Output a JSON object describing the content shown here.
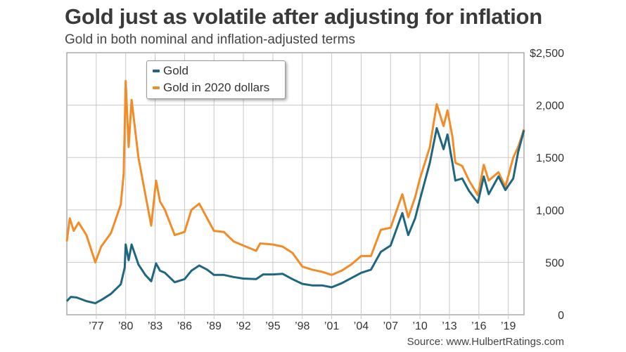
{
  "chart_data": {
    "type": "line",
    "title": "Gold just as volatile after adjusting for inflation",
    "subtitle": "Gold in both nominal and inflation-adjusted terms",
    "source": "Source: www.HulbertRatings.com",
    "xlabel": "",
    "ylabel": "",
    "xlim": [
      1974,
      2020.6
    ],
    "ylim": [
      0,
      2500
    ],
    "grid": true,
    "legend_position": "top-left",
    "x_ticks": [
      {
        "value": 1977,
        "label": "’77"
      },
      {
        "value": 1980,
        "label": "’80"
      },
      {
        "value": 1983,
        "label": "’83"
      },
      {
        "value": 1986,
        "label": "’86"
      },
      {
        "value": 1989,
        "label": "’89"
      },
      {
        "value": 1992,
        "label": "’92"
      },
      {
        "value": 1995,
        "label": "’95"
      },
      {
        "value": 1998,
        "label": "’98"
      },
      {
        "value": 2001,
        "label": "’01"
      },
      {
        "value": 2004,
        "label": "’04"
      },
      {
        "value": 2007,
        "label": "’07"
      },
      {
        "value": 2010,
        "label": "’10"
      },
      {
        "value": 2013,
        "label": "’13"
      },
      {
        "value": 2016,
        "label": "’16"
      },
      {
        "value": 2019,
        "label": "’19"
      }
    ],
    "y_ticks": [
      {
        "value": 0,
        "label": "0"
      },
      {
        "value": 500,
        "label": "500"
      },
      {
        "value": 1000,
        "label": "1,000"
      },
      {
        "value": 1500,
        "label": "1,500"
      },
      {
        "value": 2000,
        "label": "2,000"
      },
      {
        "value": 2500,
        "label": "$2,500"
      }
    ],
    "series": [
      {
        "name": "Gold",
        "color": "#1f6680",
        "points": [
          [
            1974,
            130
          ],
          [
            1974.4,
            170
          ],
          [
            1975,
            165
          ],
          [
            1976,
            130
          ],
          [
            1976.9,
            110
          ],
          [
            1977.5,
            140
          ],
          [
            1978.5,
            200
          ],
          [
            1979.5,
            290
          ],
          [
            1979.9,
            450
          ],
          [
            1980.0,
            670
          ],
          [
            1980.3,
            520
          ],
          [
            1980.6,
            670
          ],
          [
            1981.3,
            480
          ],
          [
            1982,
            380
          ],
          [
            1982.6,
            320
          ],
          [
            1983.1,
            490
          ],
          [
            1983.5,
            420
          ],
          [
            1984,
            400
          ],
          [
            1985,
            310
          ],
          [
            1986,
            340
          ],
          [
            1986.7,
            420
          ],
          [
            1987.5,
            470
          ],
          [
            1988.3,
            430
          ],
          [
            1989,
            380
          ],
          [
            1990,
            380
          ],
          [
            1991,
            360
          ],
          [
            1992,
            345
          ],
          [
            1993.3,
            340
          ],
          [
            1994,
            385
          ],
          [
            1995,
            385
          ],
          [
            1996,
            390
          ],
          [
            1997,
            340
          ],
          [
            1998,
            295
          ],
          [
            1999,
            280
          ],
          [
            2000,
            280
          ],
          [
            2001,
            262
          ],
          [
            2002,
            300
          ],
          [
            2003,
            350
          ],
          [
            2004,
            400
          ],
          [
            2005,
            430
          ],
          [
            2006,
            600
          ],
          [
            2007,
            660
          ],
          [
            2008.2,
            970
          ],
          [
            2008.8,
            760
          ],
          [
            2009.5,
            920
          ],
          [
            2010,
            1100
          ],
          [
            2011,
            1450
          ],
          [
            2011.7,
            1780
          ],
          [
            2012.4,
            1580
          ],
          [
            2012.8,
            1720
          ],
          [
            2013.3,
            1450
          ],
          [
            2013.6,
            1280
          ],
          [
            2014.3,
            1300
          ],
          [
            2015,
            1180
          ],
          [
            2015.9,
            1070
          ],
          [
            2016.5,
            1320
          ],
          [
            2017,
            1150
          ],
          [
            2018,
            1320
          ],
          [
            2018.7,
            1190
          ],
          [
            2019.5,
            1300
          ],
          [
            2020,
            1550
          ],
          [
            2020.6,
            1760
          ]
        ]
      },
      {
        "name": "Gold in 2020 dollars",
        "color": "#f28c28",
        "points": [
          [
            1974,
            700
          ],
          [
            1974.3,
            920
          ],
          [
            1974.7,
            800
          ],
          [
            1975.2,
            880
          ],
          [
            1976,
            760
          ],
          [
            1976.9,
            500
          ],
          [
            1977.5,
            650
          ],
          [
            1978.5,
            780
          ],
          [
            1979.5,
            1050
          ],
          [
            1979.8,
            1350
          ],
          [
            1980.0,
            2230
          ],
          [
            1980.3,
            1600
          ],
          [
            1980.6,
            2050
          ],
          [
            1981.3,
            1500
          ],
          [
            1982,
            1150
          ],
          [
            1982.6,
            850
          ],
          [
            1983.1,
            1280
          ],
          [
            1983.5,
            1080
          ],
          [
            1984,
            1000
          ],
          [
            1985,
            760
          ],
          [
            1986,
            790
          ],
          [
            1986.7,
            1000
          ],
          [
            1987.5,
            1060
          ],
          [
            1988.3,
            920
          ],
          [
            1989,
            800
          ],
          [
            1990,
            790
          ],
          [
            1991,
            700
          ],
          [
            1992,
            660
          ],
          [
            1993.3,
            610
          ],
          [
            1993.7,
            680
          ],
          [
            1995,
            670
          ],
          [
            1996,
            650
          ],
          [
            1997,
            590
          ],
          [
            1998,
            460
          ],
          [
            1999,
            430
          ],
          [
            2000,
            410
          ],
          [
            2001,
            380
          ],
          [
            2002,
            420
          ],
          [
            2003,
            480
          ],
          [
            2004,
            560
          ],
          [
            2005,
            560
          ],
          [
            2006,
            810
          ],
          [
            2007,
            830
          ],
          [
            2008.2,
            1150
          ],
          [
            2008.8,
            930
          ],
          [
            2009.5,
            1120
          ],
          [
            2010,
            1300
          ],
          [
            2011,
            1600
          ],
          [
            2011.7,
            2010
          ],
          [
            2012.4,
            1800
          ],
          [
            2012.8,
            1950
          ],
          [
            2013.3,
            1700
          ],
          [
            2013.6,
            1450
          ],
          [
            2014.3,
            1420
          ],
          [
            2015,
            1280
          ],
          [
            2015.9,
            1140
          ],
          [
            2016.5,
            1430
          ],
          [
            2017,
            1280
          ],
          [
            2018,
            1360
          ],
          [
            2018.7,
            1220
          ],
          [
            2019.5,
            1500
          ],
          [
            2020,
            1600
          ],
          [
            2020.6,
            1770
          ]
        ]
      }
    ]
  }
}
